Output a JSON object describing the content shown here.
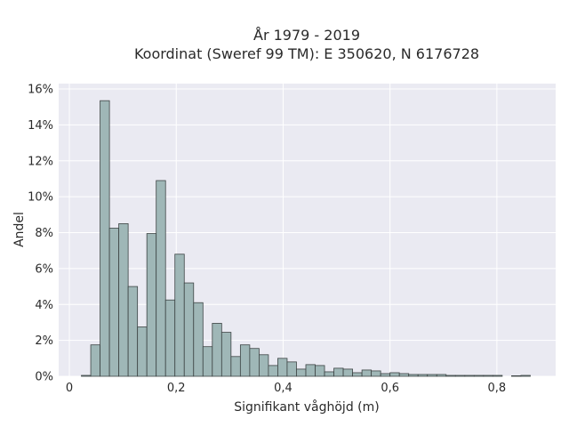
{
  "chart_data": {
    "type": "bar",
    "title": "År 1979 - 2019",
    "subtitle": "Koordinat (Sweref 99 TM): E 350620, N 6176728",
    "xlabel": "Signifikant våghöjd (m)",
    "ylabel": "Andel",
    "xlim": [
      -0.02,
      0.91
    ],
    "ylim": [
      0,
      16.3
    ],
    "x_ticks": [
      0,
      0.2,
      0.4,
      0.6,
      0.8
    ],
    "x_tick_labels": [
      "0",
      "0,2",
      "0,4",
      "0,6",
      "0,8"
    ],
    "y_ticks": [
      0,
      2,
      4,
      6,
      8,
      10,
      12,
      14,
      16
    ],
    "y_tick_labels": [
      "0%",
      "2%",
      "4%",
      "6%",
      "8%",
      "10%",
      "12%",
      "14%",
      "16%"
    ],
    "bin_width": 0.0175,
    "bin_start": 0.0225,
    "values": [
      0.05,
      1.75,
      15.35,
      8.25,
      8.5,
      5.0,
      2.75,
      7.95,
      10.9,
      4.25,
      6.8,
      5.2,
      4.1,
      1.65,
      2.95,
      2.45,
      1.1,
      1.75,
      1.55,
      1.2,
      0.6,
      1.0,
      0.8,
      0.4,
      0.65,
      0.6,
      0.25,
      0.45,
      0.4,
      0.2,
      0.35,
      0.3,
      0.15,
      0.2,
      0.15,
      0.1,
      0.1,
      0.1,
      0.1,
      0.05,
      0.05,
      0.05,
      0.05,
      0.05,
      0.05,
      0.0,
      0.03,
      0.05
    ],
    "grid": true,
    "background": "#eaeaf2",
    "bar_color": "#9fb7b7",
    "bar_edge_color": "#3d4444"
  }
}
